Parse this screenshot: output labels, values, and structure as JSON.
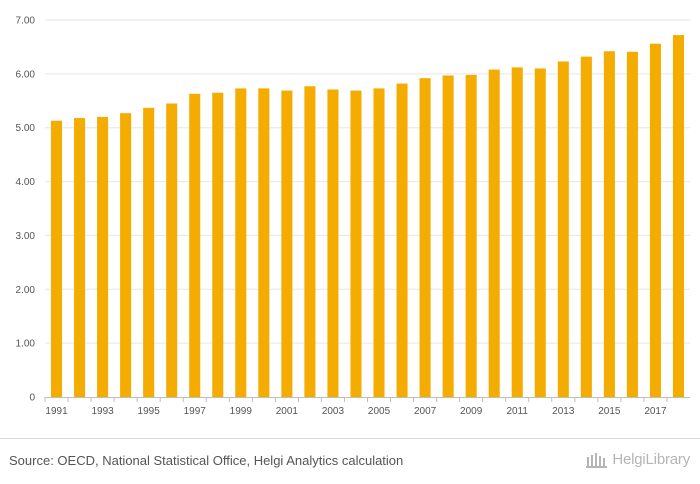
{
  "chart_data": {
    "type": "bar",
    "title": "",
    "xlabel": "",
    "ylabel": "",
    "ylim": [
      0,
      7
    ],
    "yticks": [
      "0",
      "1.00",
      "2.00",
      "3.00",
      "4.00",
      "5.00",
      "6.00",
      "7.00"
    ],
    "grid": true,
    "bar_color": "#f5ac00",
    "grid_color": "#e6e6e6",
    "categories": [
      "1991",
      "1992",
      "1993",
      "1994",
      "1995",
      "1996",
      "1997",
      "1998",
      "1999",
      "2000",
      "2001",
      "2002",
      "2003",
      "2004",
      "2005",
      "2006",
      "2007",
      "2008",
      "2009",
      "2010",
      "2011",
      "2012",
      "2013",
      "2014",
      "2015",
      "2016",
      "2017",
      "2018"
    ],
    "x_tick_labels": [
      "1991",
      "1993",
      "1995",
      "1997",
      "1999",
      "2001",
      "2003",
      "2005",
      "2007",
      "2009",
      "2011",
      "2013",
      "2015",
      "2017"
    ],
    "values": [
      5.13,
      5.18,
      5.2,
      5.27,
      5.37,
      5.45,
      5.63,
      5.65,
      5.73,
      5.73,
      5.69,
      5.77,
      5.71,
      5.69,
      5.73,
      5.82,
      5.92,
      5.97,
      5.98,
      6.08,
      6.12,
      6.1,
      6.23,
      6.32,
      6.42,
      6.41,
      6.56,
      6.72
    ]
  },
  "footer": {
    "source": "Source: OECD, National Statistical Office, Helgi Analytics calculation",
    "brand": "HelgiLibrary"
  }
}
